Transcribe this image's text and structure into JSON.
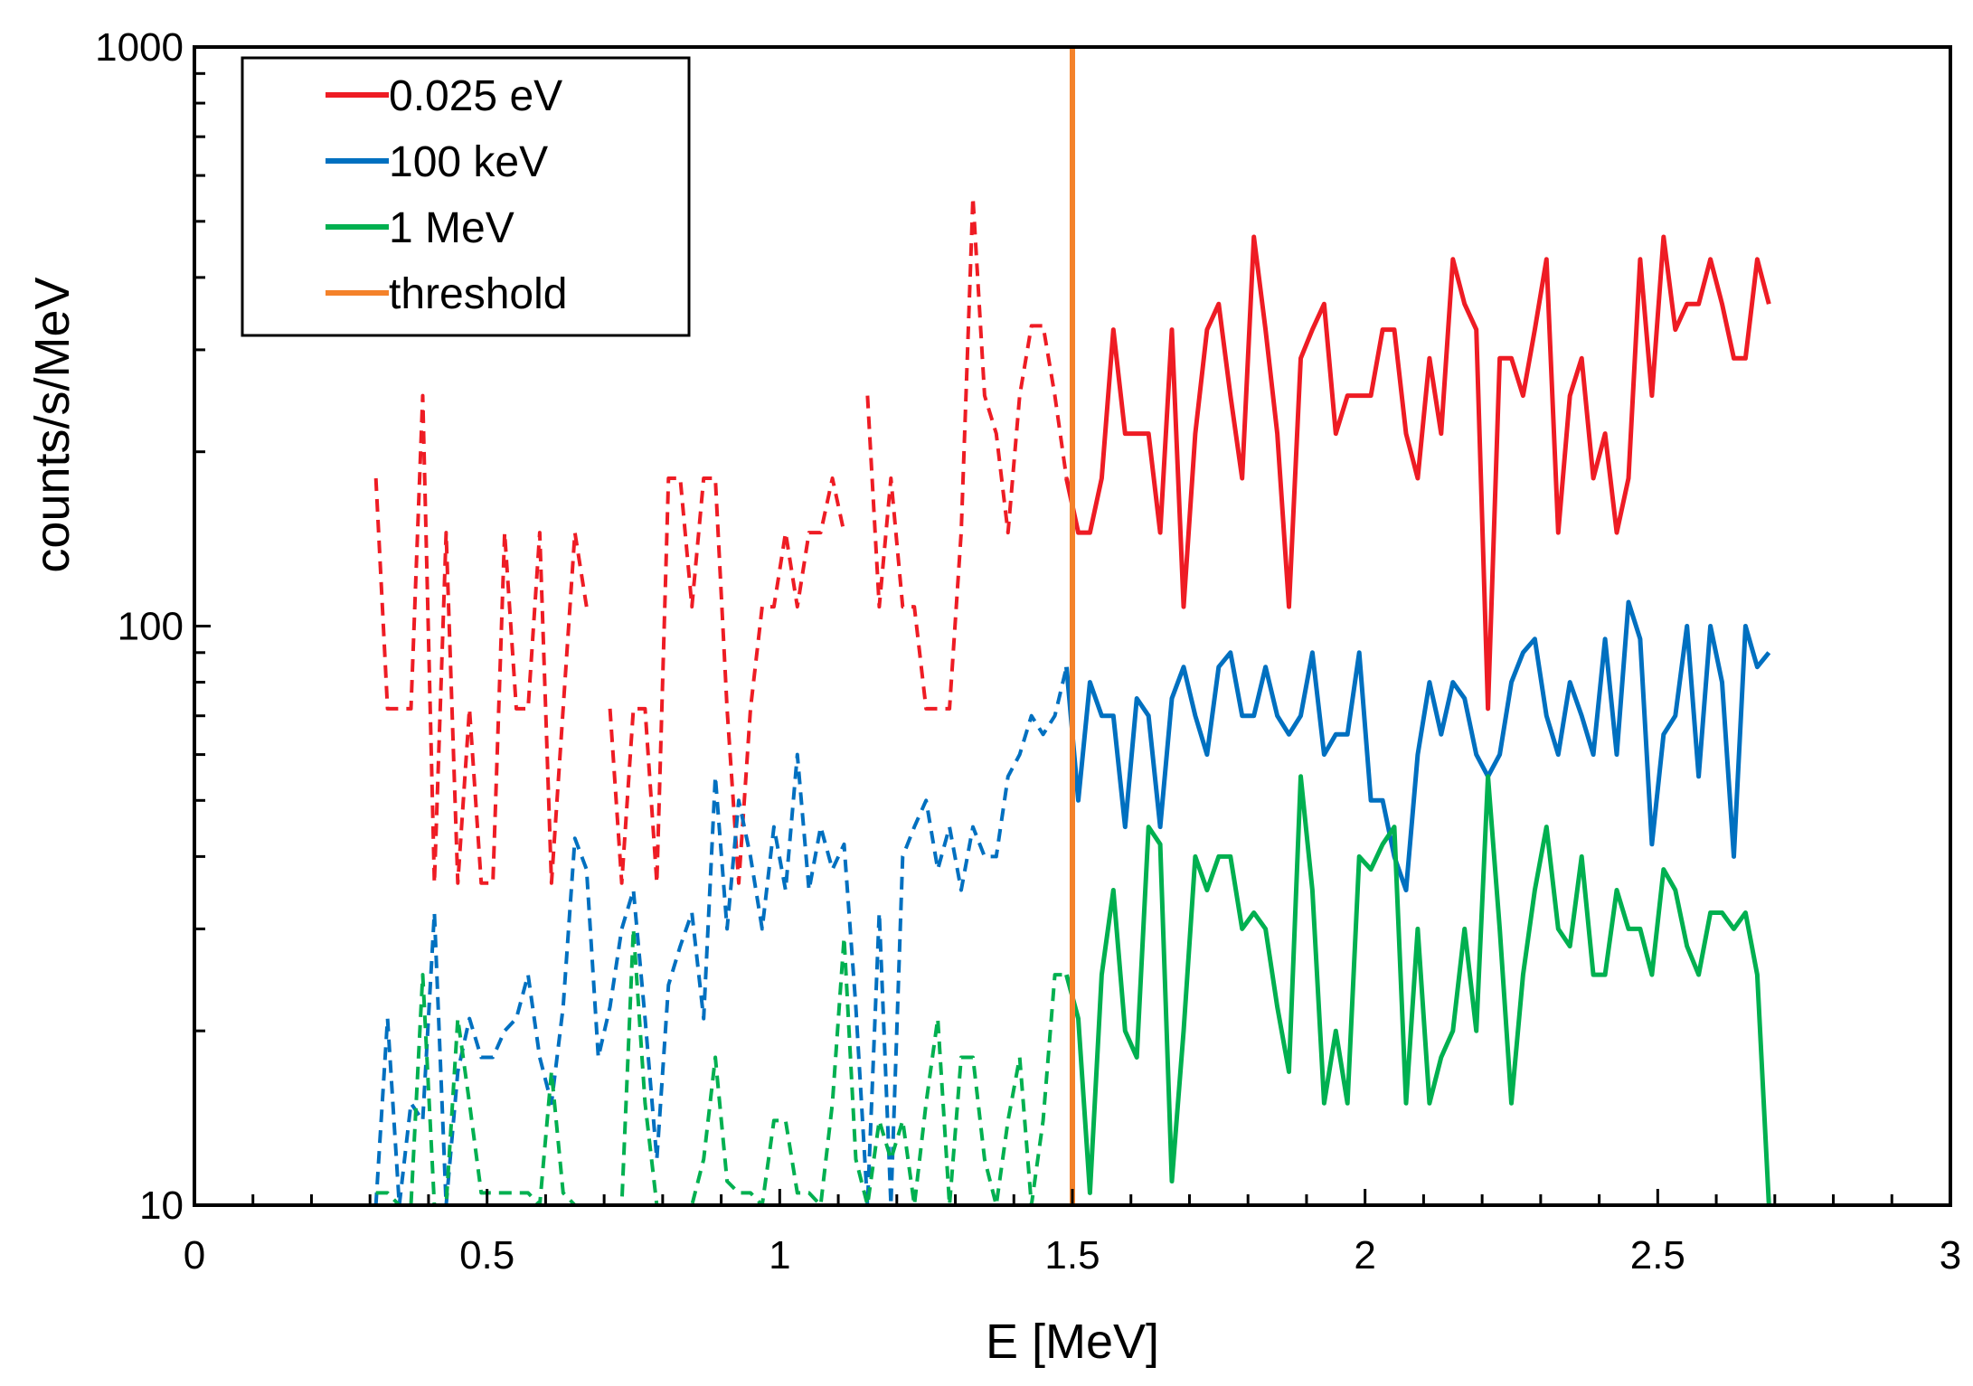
{
  "chart_data": {
    "type": "line",
    "title": "",
    "xlabel": "E [MeV]",
    "ylabel": "counts/s/MeV",
    "xlim": [
      0,
      3
    ],
    "ylim": [
      10,
      1000
    ],
    "yscale": "log",
    "x_ticks": [
      "0",
      "0.5",
      "1",
      "1.5",
      "2",
      "2.5",
      "3"
    ],
    "y_ticks": [
      "10",
      "100",
      "1000"
    ],
    "grid": false,
    "legend_position": "top-left",
    "threshold": {
      "name": "threshold",
      "x": 1.5,
      "color": "#f4822a"
    },
    "series": [
      {
        "name": "0.025 eV",
        "color": "#ee1c24",
        "x": [
          0.31,
          0.33,
          0.35,
          0.37,
          0.39,
          0.41,
          0.43,
          0.45,
          0.47,
          0.49,
          0.51,
          0.53,
          0.55,
          0.57,
          0.59,
          0.61,
          0.63,
          0.65,
          0.67,
          0.69,
          0.71,
          0.73,
          0.75,
          0.77,
          0.79,
          0.81,
          0.83,
          0.85,
          0.87,
          0.89,
          0.91,
          0.93,
          0.95,
          0.97,
          0.99,
          1.01,
          1.03,
          1.05,
          1.07,
          1.09,
          1.11,
          1.13,
          1.15,
          1.17,
          1.19,
          1.21,
          1.23,
          1.25,
          1.27,
          1.29,
          1.31,
          1.33,
          1.35,
          1.37,
          1.39,
          1.41,
          1.43,
          1.45,
          1.47,
          1.49,
          1.51,
          1.53,
          1.55,
          1.57,
          1.59,
          1.61,
          1.63,
          1.65,
          1.67,
          1.69,
          1.71,
          1.73,
          1.75,
          1.77,
          1.79,
          1.81,
          1.83,
          1.85,
          1.87,
          1.89,
          1.91,
          1.93,
          1.95,
          1.97,
          1.99,
          2.01,
          2.03,
          2.05,
          2.07,
          2.09,
          2.11,
          2.13,
          2.15,
          2.17,
          2.19,
          2.21,
          2.23,
          2.25,
          2.27,
          2.29,
          2.31,
          2.33,
          2.35,
          2.37,
          2.39,
          2.41,
          2.43,
          2.45,
          2.47,
          2.49,
          2.51,
          2.53,
          2.55,
          2.57,
          2.59,
          2.61,
          2.63,
          2.65,
          2.67,
          2.69
        ],
        "y": [
          180,
          72,
          72,
          72,
          250,
          36,
          145,
          36,
          72,
          36,
          36,
          145,
          72,
          72,
          145,
          36,
          72,
          145,
          108,
          null,
          72,
          36,
          72,
          72,
          36,
          180,
          180,
          108,
          180,
          180,
          72,
          36,
          72,
          108,
          108,
          145,
          108,
          145,
          145,
          180,
          145,
          null,
          250,
          108,
          180,
          108,
          108,
          72,
          72,
          72,
          145,
          550,
          250,
          215,
          145,
          250,
          330,
          330,
          250,
          180,
          145,
          145,
          180,
          325,
          215,
          215,
          215,
          145,
          325,
          108,
          215,
          325,
          360,
          250,
          180,
          470,
          325,
          215,
          108,
          290,
          325,
          360,
          215,
          250,
          250,
          250,
          325,
          325,
          215,
          180,
          290,
          215,
          430,
          360,
          325,
          72,
          290,
          290,
          250,
          325,
          430,
          145,
          250,
          290,
          180,
          215,
          145,
          180,
          430,
          250,
          470,
          325,
          360,
          360,
          430,
          360,
          290,
          290,
          430,
          360
        ]
      },
      {
        "name": "100 keV",
        "color": "#0070c0",
        "x": [
          0.31,
          0.33,
          0.35,
          0.37,
          0.39,
          0.41,
          0.43,
          0.45,
          0.47,
          0.49,
          0.51,
          0.53,
          0.55,
          0.57,
          0.59,
          0.61,
          0.63,
          0.65,
          0.67,
          0.69,
          0.71,
          0.73,
          0.75,
          0.77,
          0.79,
          0.81,
          0.83,
          0.85,
          0.87,
          0.89,
          0.91,
          0.93,
          0.95,
          0.97,
          0.99,
          1.01,
          1.03,
          1.05,
          1.07,
          1.09,
          1.11,
          1.13,
          1.15,
          1.17,
          1.19,
          1.21,
          1.23,
          1.25,
          1.27,
          1.29,
          1.31,
          1.33,
          1.35,
          1.37,
          1.39,
          1.41,
          1.43,
          1.45,
          1.47,
          1.49,
          1.51,
          1.53,
          1.55,
          1.57,
          1.59,
          1.61,
          1.63,
          1.65,
          1.67,
          1.69,
          1.71,
          1.73,
          1.75,
          1.77,
          1.79,
          1.81,
          1.83,
          1.85,
          1.87,
          1.89,
          1.91,
          1.93,
          1.95,
          1.97,
          1.99,
          2.01,
          2.03,
          2.05,
          2.07,
          2.09,
          2.11,
          2.13,
          2.15,
          2.17,
          2.19,
          2.21,
          2.23,
          2.25,
          2.27,
          2.29,
          2.31,
          2.33,
          2.35,
          2.37,
          2.39,
          2.41,
          2.43,
          2.45,
          2.47,
          2.49,
          2.51,
          2.53,
          2.55,
          2.57,
          2.59,
          2.61,
          2.63,
          2.65,
          2.67,
          2.69
        ],
        "y": [
          10,
          21,
          10,
          15,
          14,
          32,
          10,
          17,
          21,
          18,
          18,
          20,
          21,
          25,
          18,
          15,
          22,
          43,
          38,
          18,
          22,
          30,
          35,
          21,
          12,
          24,
          28,
          32,
          21,
          55,
          30,
          50,
          40,
          30,
          45,
          35,
          60,
          35,
          45,
          38,
          42,
          22,
          10,
          32,
          10,
          40,
          45,
          50,
          38,
          45,
          35,
          45,
          40,
          40,
          55,
          60,
          70,
          65,
          70,
          85,
          50,
          80,
          70,
          70,
          45,
          75,
          70,
          45,
          75,
          85,
          70,
          60,
          85,
          90,
          70,
          70,
          85,
          70,
          65,
          70,
          90,
          60,
          65,
          65,
          90,
          50,
          50,
          40,
          35,
          60,
          80,
          65,
          80,
          75,
          60,
          55,
          60,
          80,
          90,
          95,
          70,
          60,
          80,
          70,
          60,
          95,
          60,
          110,
          95,
          42,
          65,
          70,
          100,
          55,
          100,
          80,
          40,
          100,
          85,
          90
        ]
      },
      {
        "name": "1 MeV",
        "color": "#00b050",
        "x": [
          0.31,
          0.33,
          0.35,
          0.37,
          0.39,
          0.41,
          0.43,
          0.45,
          0.47,
          0.49,
          0.51,
          0.53,
          0.55,
          0.57,
          0.59,
          0.61,
          0.63,
          0.65,
          0.67,
          0.69,
          0.71,
          0.73,
          0.75,
          0.77,
          0.79,
          0.81,
          0.83,
          0.85,
          0.87,
          0.89,
          0.91,
          0.93,
          0.95,
          0.97,
          0.99,
          1.01,
          1.03,
          1.05,
          1.07,
          1.09,
          1.11,
          1.13,
          1.15,
          1.17,
          1.19,
          1.21,
          1.23,
          1.25,
          1.27,
          1.29,
          1.31,
          1.33,
          1.35,
          1.37,
          1.39,
          1.41,
          1.43,
          1.45,
          1.47,
          1.49,
          1.51,
          1.53,
          1.55,
          1.57,
          1.59,
          1.61,
          1.63,
          1.65,
          1.67,
          1.69,
          1.71,
          1.73,
          1.75,
          1.77,
          1.79,
          1.81,
          1.83,
          1.85,
          1.87,
          1.89,
          1.91,
          1.93,
          1.95,
          1.97,
          1.99,
          2.01,
          2.03,
          2.05,
          2.07,
          2.09,
          2.11,
          2.13,
          2.15,
          2.17,
          2.19,
          2.21,
          2.23,
          2.25,
          2.27,
          2.29,
          2.31,
          2.33,
          2.35,
          2.37,
          2.39,
          2.41,
          2.43,
          2.45,
          2.47,
          2.49,
          2.51,
          2.53,
          2.55,
          2.57,
          2.59,
          2.61,
          2.63,
          2.65,
          2.67,
          2.69
        ],
        "y": [
          10.5,
          10.5,
          10,
          10,
          25,
          10,
          10,
          21,
          15,
          10.5,
          10.5,
          10.5,
          10.5,
          10.5,
          10,
          17,
          10.5,
          10,
          10,
          10,
          10,
          10,
          30,
          15,
          10,
          10,
          10,
          10,
          12,
          18,
          11,
          10.5,
          10.5,
          10,
          14,
          14,
          10.5,
          10.5,
          10,
          15,
          29,
          12,
          10,
          14,
          12,
          14,
          10,
          15,
          21,
          10,
          18,
          18,
          12,
          10,
          14,
          18,
          10,
          14,
          25,
          25,
          21,
          10.5,
          25,
          35,
          20,
          18,
          45,
          42,
          11,
          20,
          40,
          35,
          40,
          40,
          30,
          32,
          30,
          22,
          17,
          55,
          35,
          15,
          20,
          15,
          40,
          38,
          42,
          45,
          15,
          30,
          15,
          18,
          20,
          30,
          20,
          55,
          30,
          15,
          25,
          35,
          45,
          30,
          28,
          40,
          25,
          25,
          35,
          30,
          30,
          25,
          38,
          35,
          28,
          25,
          32,
          32,
          30,
          32,
          25,
          10
        ]
      }
    ]
  }
}
